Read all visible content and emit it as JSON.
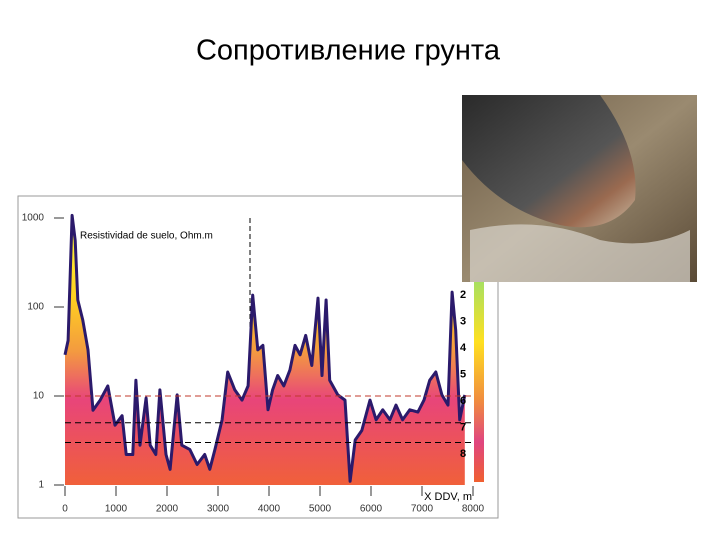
{
  "title": "Сопротивление грунта",
  "chart_data": {
    "type": "area",
    "annotation": "Resistividad de suelo, Ohm.m",
    "xlabel": "X DDV, m",
    "xlim": [
      0,
      8000
    ],
    "xticks": [
      0,
      1000,
      2000,
      3000,
      4000,
      5000,
      6000,
      7000,
      8000
    ],
    "ylim": [
      1,
      1000
    ],
    "yticks": [
      1,
      10,
      100,
      1000
    ],
    "log_y": true,
    "hlines": [
      10,
      5,
      3
    ],
    "scale_labels": [
      "2",
      "3",
      "4",
      "5",
      "6",
      "7",
      "8"
    ],
    "series": [
      {
        "color": "#2b1a6b",
        "x": [
          0,
          60,
          140,
          200,
          250,
          350,
          450,
          550,
          690,
          840,
          980,
          1120,
          1200,
          1330,
          1390,
          1470,
          1590,
          1670,
          1780,
          1860,
          1980,
          2060,
          2200,
          2290,
          2450,
          2590,
          2740,
          2840,
          2940,
          3080,
          3190,
          3330,
          3470,
          3590,
          3680,
          3780,
          3880,
          3980,
          4070,
          4170,
          4290,
          4410,
          4510,
          4610,
          4720,
          4840,
          4960,
          5040,
          5120,
          5190,
          5350,
          5490,
          5590,
          5690,
          5820,
          5980,
          6100,
          6230,
          6370,
          6490,
          6620,
          6760,
          6920,
          7040,
          7150,
          7270,
          7390,
          7510,
          7590,
          7660,
          7740,
          7840
        ],
        "values": [
          29,
          42,
          1070,
          560,
          120,
          71,
          33,
          6.9,
          9,
          13,
          4.7,
          6,
          2.2,
          2.2,
          15,
          2.8,
          9.5,
          2.8,
          2.2,
          11.7,
          2.2,
          1.5,
          10.3,
          2.8,
          2.5,
          1.7,
          2.2,
          1.5,
          2.5,
          5.4,
          18.6,
          11.7,
          9,
          13,
          136,
          33,
          37,
          7,
          11.7,
          17,
          13,
          19.6,
          37,
          29,
          48,
          22,
          126,
          17,
          120,
          15,
          10.3,
          9,
          1.1,
          3.2,
          4.1,
          9,
          5.4,
          7,
          5.4,
          7.9,
          5.4,
          7,
          6.6,
          9,
          15,
          18.6,
          10.3,
          7.9,
          147,
          55,
          5.4,
          10.3
        ]
      }
    ]
  }
}
